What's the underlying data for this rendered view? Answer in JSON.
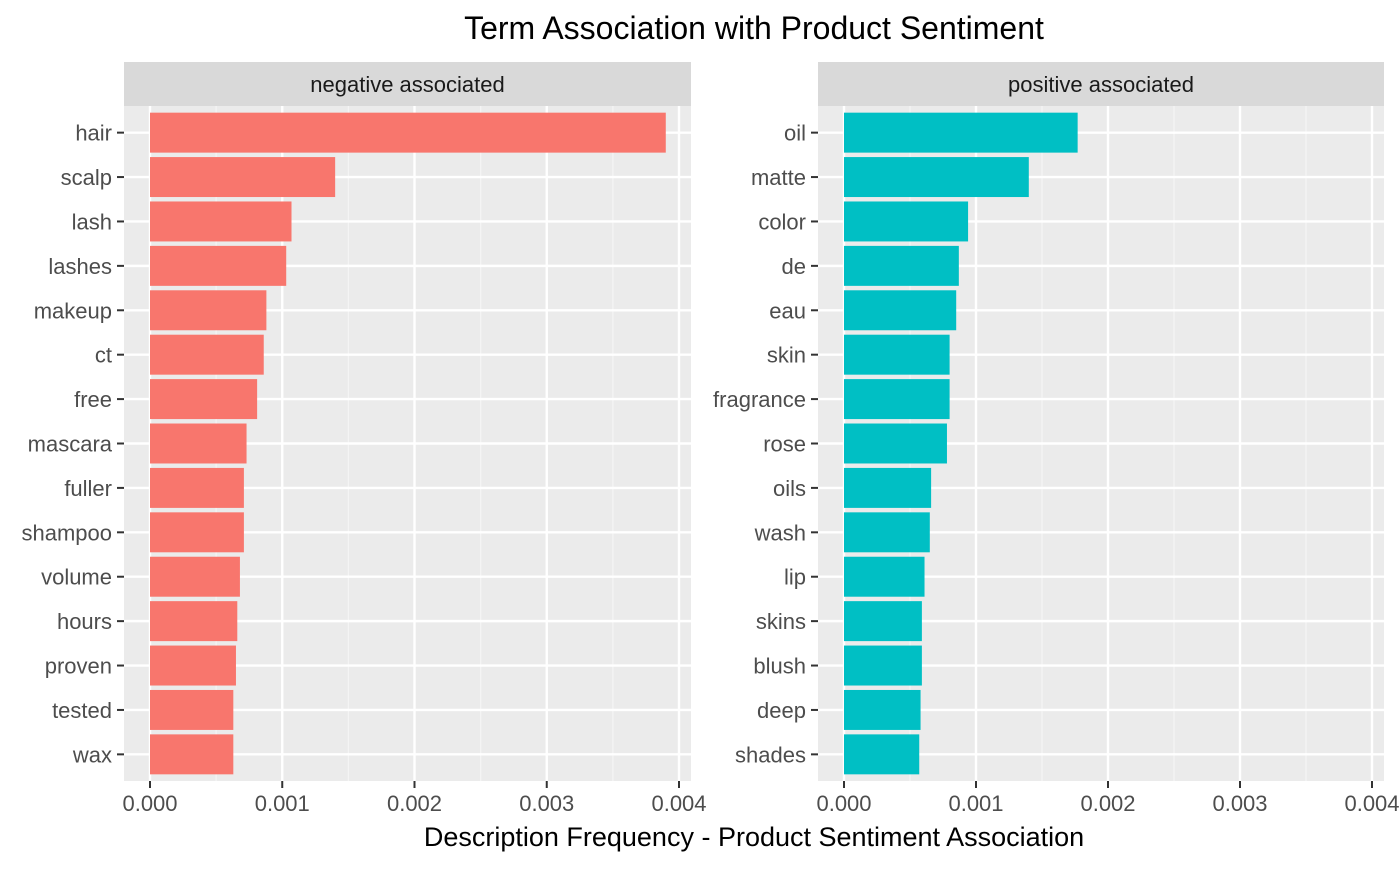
{
  "chart_data": {
    "type": "bar",
    "orientation": "horizontal",
    "title": "Term Association with Product Sentiment",
    "xlabel": "Description Frequency - Product Sentiment Association",
    "ylabel": "",
    "xlim": [
      0,
      0.004
    ],
    "x_ticks": [
      "0.000",
      "0.001",
      "0.002",
      "0.003",
      "0.004"
    ],
    "grid": true,
    "legend": "none",
    "panels": [
      {
        "strip_label": "negative associated",
        "color": "#F8766D",
        "categories": [
          "hair",
          "scalp",
          "lash",
          "lashes",
          "makeup",
          "ct",
          "free",
          "mascara",
          "fuller",
          "shampoo",
          "volume",
          "hours",
          "proven",
          "tested",
          "wax"
        ],
        "values": [
          0.0039,
          0.0014,
          0.00107,
          0.00103,
          0.00088,
          0.00086,
          0.00081,
          0.00073,
          0.00071,
          0.00071,
          0.00068,
          0.00066,
          0.00065,
          0.00063,
          0.00063
        ]
      },
      {
        "strip_label": "positive associated",
        "color": "#00BFC4",
        "categories": [
          "oil",
          "matte",
          "color",
          "de",
          "eau",
          "skin",
          "fragrance",
          "rose",
          "oils",
          "wash",
          "lip",
          "skins",
          "blush",
          "deep",
          "shades"
        ],
        "values": [
          0.00177,
          0.0014,
          0.00094,
          0.00087,
          0.00085,
          0.0008,
          0.0008,
          0.00078,
          0.00066,
          0.00065,
          0.00061,
          0.00059,
          0.00059,
          0.00058,
          0.00057
        ]
      }
    ]
  }
}
